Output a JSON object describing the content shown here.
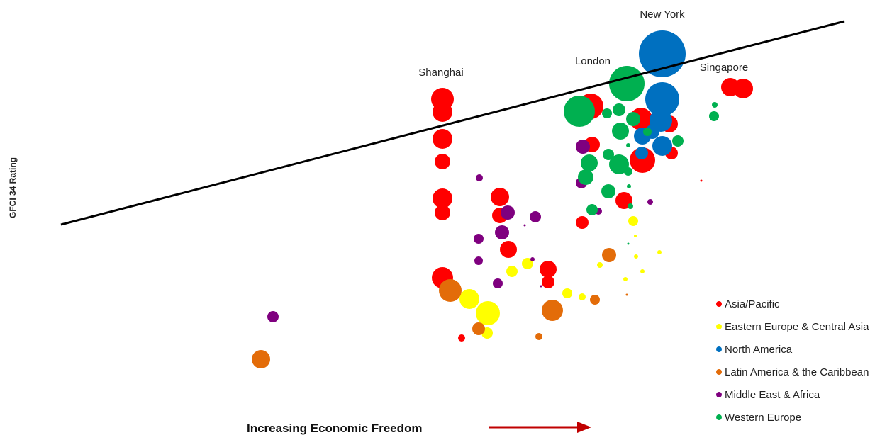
{
  "chart_data": {
    "type": "scatter",
    "title": "",
    "xlabel": "Increasing Economic Freedom",
    "ylabel": "GFCI 34 Rating",
    "axes_visible": false,
    "grid": false,
    "legend_position": "bottom-right",
    "trendline": {
      "style": "linear",
      "color": "#000000"
    },
    "regions": [
      {
        "name": "Asia/Pacific",
        "color": "#FF0000"
      },
      {
        "name": "Eastern Europe & Central Asia",
        "color": "#FFFF00"
      },
      {
        "name": "North America",
        "color": "#0070C0"
      },
      {
        "name": "Latin America & the Caribbean",
        "color": "#E36C09"
      },
      {
        "name": "Middle East & Africa",
        "color": "#7F007F"
      },
      {
        "name": "Western Europe",
        "color": "#00B050"
      }
    ],
    "annotations": [
      {
        "text": "New York",
        "region": "North America"
      },
      {
        "text": "London",
        "region": "Western Europe"
      },
      {
        "text": "Shanghai",
        "region": "Asia/Pacific"
      },
      {
        "text": "Singapore",
        "region": "Asia/Pacific"
      }
    ]
  }
}
